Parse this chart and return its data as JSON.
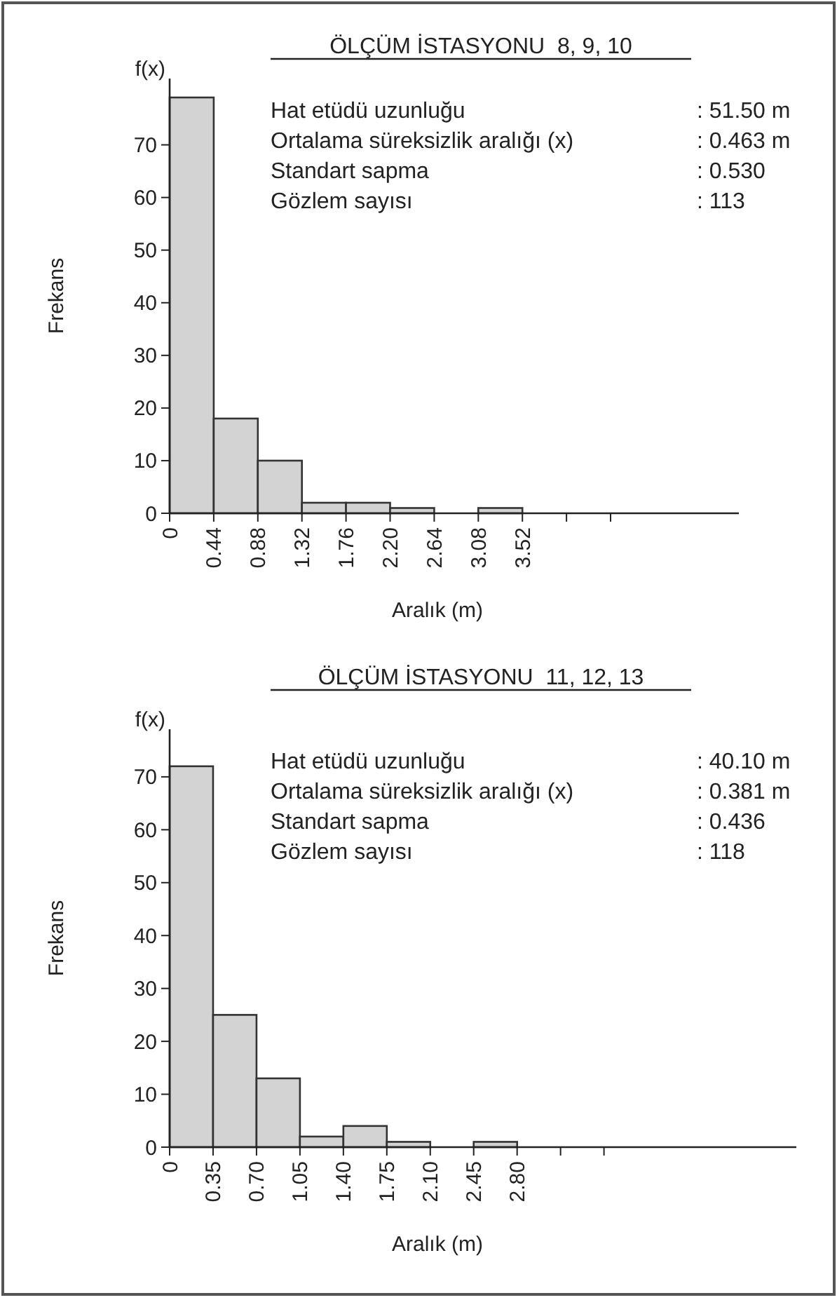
{
  "chart_data": [
    {
      "type": "histogram",
      "title": "ÖLÇÜM İSTASYONU  8, 9, 10",
      "xlabel": "Aralık (m)",
      "ylabel": "Frekans",
      "color": "#d3d3d3",
      "bins": [
        0,
        0.44,
        0.88,
        1.32,
        1.76,
        2.2,
        2.64,
        3.08,
        3.52
      ],
      "values": [
        79,
        18,
        10,
        2,
        2,
        1,
        0,
        1
      ],
      "xlim": [
        0,
        5.68
      ],
      "ylim": [
        0,
        82.6
      ],
      "xticks": [
        0,
        {
          "value": 0.44,
          "label": "0.44"
        },
        {
          "value": 0.88,
          "label": "0.88"
        },
        {
          "value": 1.32,
          "label": "1.32"
        },
        {
          "value": 1.76,
          "label": "1.76"
        },
        {
          "value": 2.2,
          "label": "2.20"
        },
        {
          "value": 2.64,
          "label": "2.64"
        },
        {
          "value": 3.08,
          "label": "3.08"
        },
        {
          "value": 3.52,
          "label": "3.52"
        },
        {
          "value": 3.96,
          "label": null
        },
        {
          "value": 4.4,
          "label": null
        }
      ],
      "yticks": [
        0,
        10,
        20,
        30,
        40,
        50,
        60,
        70
      ],
      "annotations": [
        "f(x)",
        "Hat etüdü uzunluğu",
        ": 51.50 m",
        "Ortalama süreksizlik aralığı (x)",
        ": 0.463 m",
        "Standart sapma",
        ": 0.530",
        "Gözlem sayısı",
        ": 113"
      ]
    },
    {
      "type": "histogram",
      "title": "ÖLÇÜM İSTASYONU  11, 12, 13",
      "xlabel": "Aralık (m)",
      "ylabel": "Frekans",
      "color": "#d3d3d3",
      "bins": [
        0,
        0.35,
        0.7,
        1.05,
        1.4,
        1.75,
        2.1,
        2.45,
        2.8
      ],
      "values": [
        72,
        25,
        13,
        2,
        4,
        1,
        0,
        1
      ],
      "xlim": [
        0,
        5.05
      ],
      "ylim": [
        0,
        79
      ],
      "xticks": [
        0,
        {
          "value": 0.35,
          "label": "0.35"
        },
        {
          "value": 0.7,
          "label": "0.70"
        },
        {
          "value": 1.05,
          "label": "1.05"
        },
        {
          "value": 1.4,
          "label": "1.40"
        },
        {
          "value": 1.75,
          "label": "1.75"
        },
        {
          "value": 2.1,
          "label": "2.10"
        },
        {
          "value": 2.45,
          "label": "2.45"
        },
        {
          "value": 2.8,
          "label": "2.80"
        },
        {
          "value": 3.15,
          "label": null
        },
        {
          "value": 3.5,
          "label": null
        }
      ],
      "yticks": [
        0,
        10,
        20,
        30,
        40,
        50,
        60,
        70
      ],
      "annotations": [
        "f(x)",
        "Hat etüdü uzunluğu",
        ": 40.10 m",
        "Ortalama süreksizlik aralığı (x)",
        ": 0.381 m",
        "Standart sapma",
        ": 0.436",
        "Gözlem sayısı",
        ": 118"
      ]
    }
  ]
}
